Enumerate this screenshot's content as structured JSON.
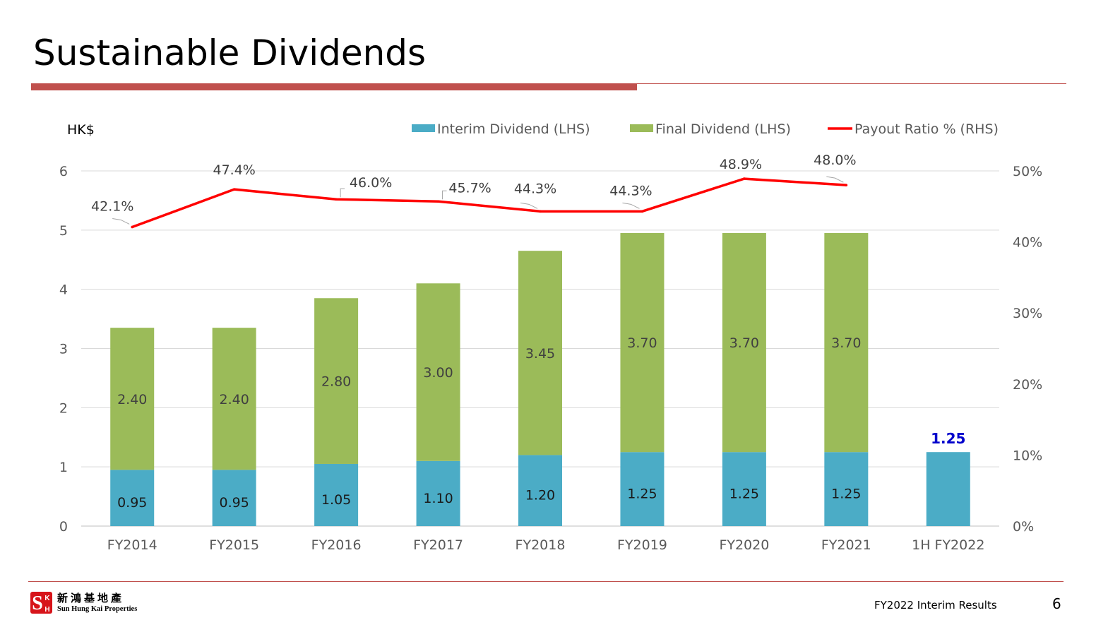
{
  "slide": {
    "title": "Sustainable Dividends",
    "footer_text": "FY2022 Interim Results",
    "page_number": "6"
  },
  "logo": {
    "chinese_name": "新鴻基地產",
    "english_name": "Sun Hung Kai Properties",
    "mark_letters": [
      "S",
      "H",
      "K"
    ]
  },
  "colors": {
    "title_rule": "#c0504d",
    "interim": "#4bacc6",
    "final": "#9bbb59",
    "payout": "#ff0000",
    "highlight_label": "#0000cc",
    "axis_text": "#595959",
    "data_label": "#404040",
    "gridline": "#d9d9d9",
    "logo_red": "#d7141a"
  },
  "chart_data": {
    "type": "bar",
    "stacked": true,
    "categories": [
      "FY2014",
      "FY2015",
      "FY2016",
      "FY2017",
      "FY2018",
      "FY2019",
      "FY2020",
      "FY2021",
      "1H FY2022"
    ],
    "ylabel": "HK$",
    "ylim": [
      0,
      6
    ],
    "yticks": [
      0,
      1,
      2,
      3,
      4,
      5,
      6
    ],
    "y2lim": [
      0,
      50
    ],
    "y2ticks": [
      "0%",
      "10%",
      "20%",
      "30%",
      "40%",
      "50%"
    ],
    "grid": true,
    "legend_position": "top-right",
    "series": [
      {
        "name": "Interim Dividend (LHS)",
        "axis": "left",
        "values": [
          0.95,
          0.95,
          1.05,
          1.1,
          1.2,
          1.25,
          1.25,
          1.25,
          1.25
        ],
        "labels": [
          "0.95",
          "0.95",
          "1.05",
          "1.10",
          "1.20",
          "1.25",
          "1.25",
          "1.25",
          "1.25"
        ]
      },
      {
        "name": "Final Dividend (LHS)",
        "axis": "left",
        "values": [
          2.4,
          2.4,
          2.8,
          3.0,
          3.45,
          3.7,
          3.7,
          3.7,
          null
        ],
        "labels": [
          "2.40",
          "2.40",
          "2.80",
          "3.00",
          "3.45",
          "3.70",
          "3.70",
          "3.70",
          ""
        ]
      },
      {
        "name": "Payout Ratio % (RHS)",
        "type": "line",
        "axis": "right",
        "values": [
          42.1,
          47.4,
          46.0,
          45.7,
          44.3,
          44.3,
          48.9,
          48.0,
          null
        ],
        "labels": [
          "42.1%",
          "47.4%",
          "46.0%",
          "45.7%",
          "44.3%",
          "44.3%",
          "48.9%",
          "48.0%",
          ""
        ]
      }
    ]
  }
}
